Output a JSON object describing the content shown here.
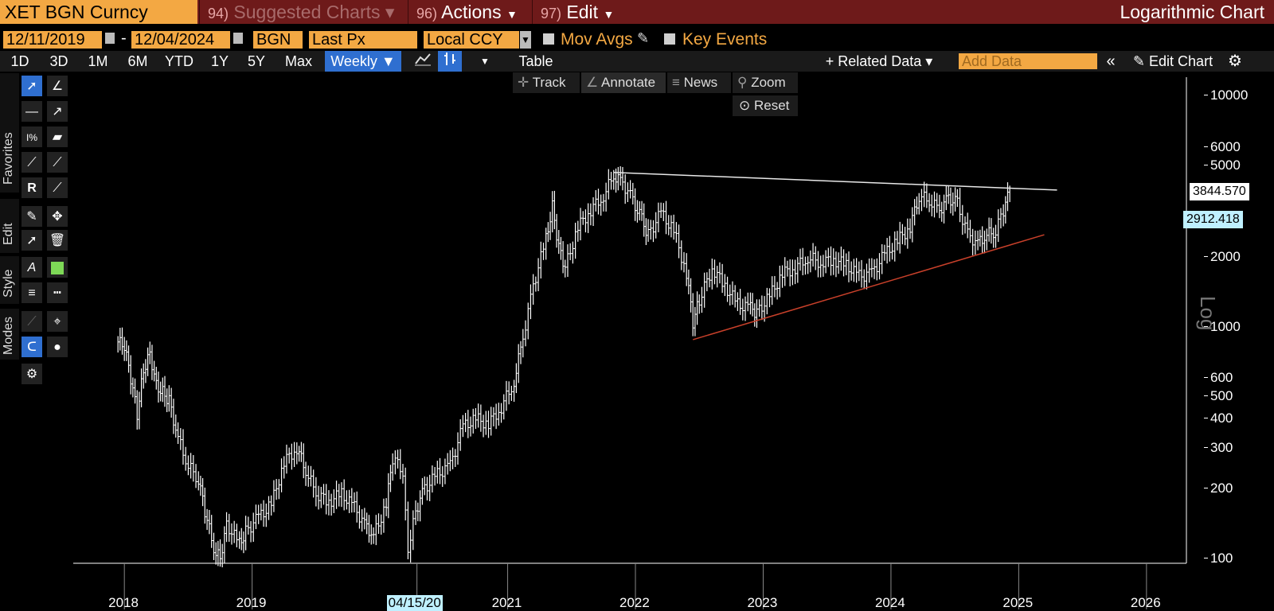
{
  "header": {
    "ticker": "XET BGN Curncy",
    "suggested_num": "94)",
    "suggested_label": "Suggested Charts",
    "actions_num": "96)",
    "actions_label": "Actions",
    "edit_num": "97)",
    "edit_label": "Edit",
    "title": "Logarithmic Chart"
  },
  "params": {
    "start_date": "12/11/2019",
    "dash": "-",
    "end_date": "12/04/2024",
    "source": "BGN",
    "field": "Last Px",
    "currency": "Local CCY",
    "mov_avgs": "Mov Avgs",
    "key_events": "Key Events"
  },
  "ranges": [
    "1D",
    "3D",
    "1M",
    "6M",
    "YTD",
    "1Y",
    "5Y",
    "Max"
  ],
  "period": "Weekly ▼",
  "table_label": "Table",
  "related_data": "+ Related Data ▾",
  "add_data_placeholder": "Add Data",
  "edit_chart": "Edit Chart",
  "chart_tools": {
    "track": "Track",
    "annotate": "Annotate",
    "news": "News",
    "zoom": "Zoom",
    "reset": "Reset"
  },
  "side_tabs": {
    "favorites": "Favorites",
    "edit": "Edit",
    "style": "Style",
    "modes": "Modes"
  },
  "colors": {
    "accent": "#f3a843",
    "header_bg": "#6e1a1a",
    "selected": "#2f6fd0",
    "trend_red": "#c8402a",
    "last_tag": "#ffffff",
    "alt_tag": "#bff0ff"
  },
  "chart_data": {
    "type": "line",
    "scale": "log",
    "ylabel": "Log",
    "ylim": [
      95,
      12000
    ],
    "yticks": [
      10000,
      6000,
      5000,
      2000,
      1000,
      600,
      500,
      400,
      300,
      200,
      100
    ],
    "xlim": [
      2017.6,
      2026.3
    ],
    "xticks": [
      2018,
      2019,
      2020.29,
      2021,
      2022,
      2023,
      2024,
      2025,
      2026
    ],
    "xtick_labels": [
      "2018",
      "2019",
      "04/15/20",
      "2021",
      "2022",
      "2023",
      "2024",
      "2025",
      "2026"
    ],
    "last_value": "3844.570",
    "alt_value": "2912.418",
    "series": [
      {
        "points": [
          [
            2017.95,
            860
          ],
          [
            2018.0,
            820
          ],
          [
            2018.05,
            600
          ],
          [
            2018.1,
            420
          ],
          [
            2018.15,
            650
          ],
          [
            2018.2,
            770
          ],
          [
            2018.25,
            560
          ],
          [
            2018.3,
            520
          ],
          [
            2018.35,
            480
          ],
          [
            2018.42,
            330
          ],
          [
            2018.5,
            250
          ],
          [
            2018.58,
            220
          ],
          [
            2018.63,
            160
          ],
          [
            2018.7,
            110
          ],
          [
            2018.75,
            100
          ],
          [
            2018.8,
            140
          ],
          [
            2018.9,
            115
          ],
          [
            2018.95,
            130
          ],
          [
            2019.05,
            150
          ],
          [
            2019.15,
            170
          ],
          [
            2019.25,
            260
          ],
          [
            2019.35,
            300
          ],
          [
            2019.42,
            240
          ],
          [
            2019.5,
            190
          ],
          [
            2019.6,
            175
          ],
          [
            2019.7,
            190
          ],
          [
            2019.8,
            165
          ],
          [
            2019.88,
            140
          ],
          [
            2019.95,
            125
          ],
          [
            2020.05,
            170
          ],
          [
            2020.1,
            270
          ],
          [
            2020.18,
            240
          ],
          [
            2020.22,
            110
          ],
          [
            2020.28,
            160
          ],
          [
            2020.35,
            200
          ],
          [
            2020.45,
            230
          ],
          [
            2020.55,
            250
          ],
          [
            2020.65,
            370
          ],
          [
            2020.75,
            400
          ],
          [
            2020.85,
            380
          ],
          [
            2020.95,
            450
          ],
          [
            2021.05,
            580
          ],
          [
            2021.12,
            900
          ],
          [
            2021.2,
            1500
          ],
          [
            2021.3,
            2400
          ],
          [
            2021.35,
            3300
          ],
          [
            2021.4,
            2200
          ],
          [
            2021.45,
            1800
          ],
          [
            2021.55,
            2700
          ],
          [
            2021.65,
            3200
          ],
          [
            2021.75,
            3700
          ],
          [
            2021.83,
            4500
          ],
          [
            2021.9,
            4200
          ],
          [
            2021.98,
            3500
          ],
          [
            2022.05,
            2900
          ],
          [
            2022.1,
            2500
          ],
          [
            2022.2,
            3100
          ],
          [
            2022.3,
            2600
          ],
          [
            2022.4,
            1700
          ],
          [
            2022.45,
            1050
          ],
          [
            2022.5,
            1300
          ],
          [
            2022.6,
            1800
          ],
          [
            2022.7,
            1500
          ],
          [
            2022.8,
            1250
          ],
          [
            2022.9,
            1200
          ],
          [
            2022.95,
            1150
          ],
          [
            2023.05,
            1350
          ],
          [
            2023.15,
            1700
          ],
          [
            2023.25,
            1800
          ],
          [
            2023.35,
            2000
          ],
          [
            2023.45,
            1900
          ],
          [
            2023.55,
            1950
          ],
          [
            2023.65,
            1850
          ],
          [
            2023.75,
            1650
          ],
          [
            2023.85,
            1700
          ],
          [
            2023.95,
            2050
          ],
          [
            2024.05,
            2350
          ],
          [
            2024.15,
            2700
          ],
          [
            2024.22,
            3700
          ],
          [
            2024.3,
            3500
          ],
          [
            2024.38,
            3200
          ],
          [
            2024.45,
            3600
          ],
          [
            2024.52,
            3400
          ],
          [
            2024.6,
            2500
          ],
          [
            2024.68,
            2300
          ],
          [
            2024.75,
            2500
          ],
          [
            2024.82,
            2600
          ],
          [
            2024.88,
            3200
          ],
          [
            2024.93,
            3844.57
          ]
        ]
      }
    ],
    "trendlines": [
      {
        "color": "white",
        "from": [
          2021.83,
          4650
        ],
        "to": [
          2025.3,
          3900
        ]
      },
      {
        "color": "red",
        "from": [
          2022.45,
          880
        ],
        "to": [
          2025.2,
          2500
        ]
      }
    ]
  }
}
